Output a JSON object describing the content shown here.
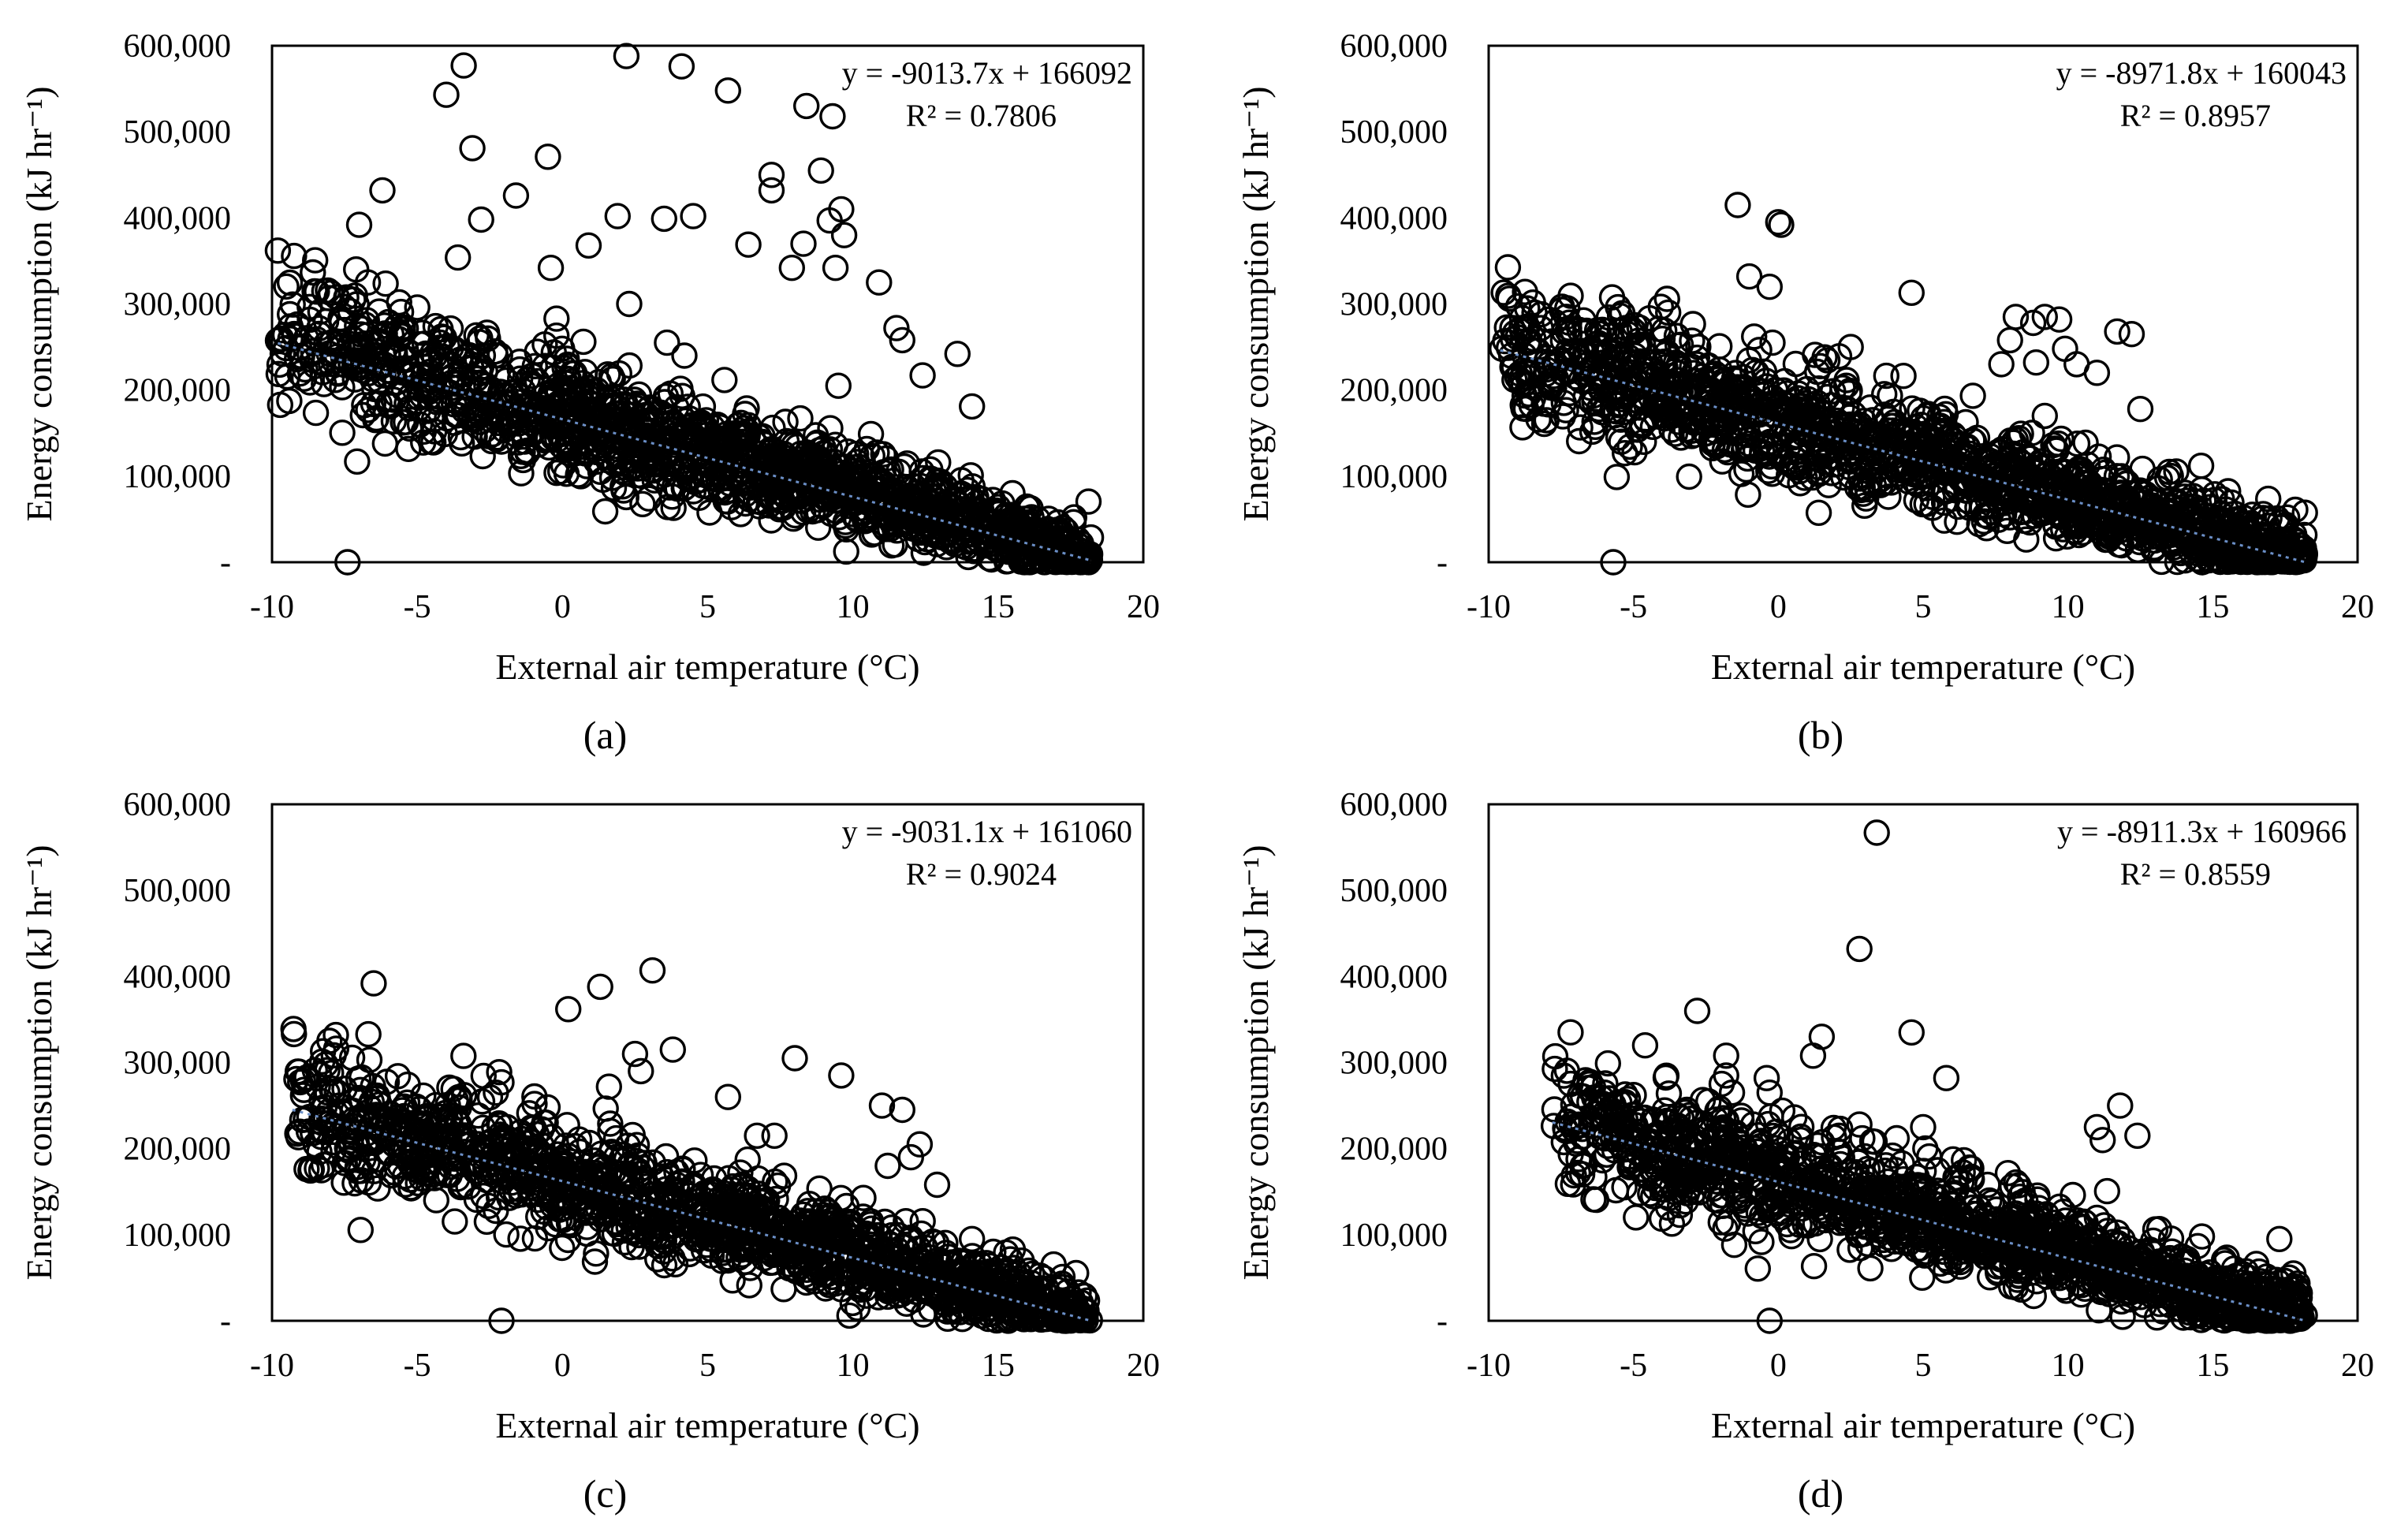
{
  "figure": {
    "panels": [
      {
        "label": "(a)",
        "equation": "y = -9013.7x + 166092",
        "r2": "R² = 0.7806",
        "ylabel": "Energy consumption (kJ hr⁻¹)",
        "xlabel": "External air temperature (°C)",
        "ytick_labels": [
          "-",
          "100,000",
          "200,000",
          "300,000",
          "400,000",
          "500,000",
          "600,000"
        ],
        "xtick_labels": [
          "-10",
          "-5",
          "0",
          "5",
          "10",
          "15",
          "20"
        ]
      },
      {
        "label": "(b)",
        "equation": "y = -8971.8x + 160043",
        "r2": "R² = 0.8957",
        "ylabel": "Energy consumption (kJ hr⁻¹)",
        "xlabel": "External air temperature (°C)",
        "ytick_labels": [
          "-",
          "100,000",
          "200,000",
          "300,000",
          "400,000",
          "500,000",
          "600,000"
        ],
        "xtick_labels": [
          "-10",
          "-5",
          "0",
          "5",
          "10",
          "15",
          "20"
        ]
      },
      {
        "label": "(c)",
        "equation": "y = -9031.1x + 161060",
        "r2": "R² = 0.9024",
        "ylabel": "Energy consumption (kJ hr⁻¹)",
        "xlabel": "External air temperature (°C)",
        "ytick_labels": [
          "-",
          "100,000",
          "200,000",
          "300,000",
          "400,000",
          "500,000",
          "600,000"
        ],
        "xtick_labels": [
          "-10",
          "-5",
          "0",
          "5",
          "10",
          "15",
          "20"
        ]
      },
      {
        "label": "(d)",
        "equation": "y = -8911.3x + 160966",
        "r2": "R² = 0.8559",
        "ylabel": "Energy consumption (kJ hr⁻¹)",
        "xlabel": "External air temperature (°C)",
        "ytick_labels": [
          "-",
          "100,000",
          "200,000",
          "300,000",
          "400,000",
          "500,000",
          "600,000"
        ],
        "xtick_labels": [
          "-10",
          "-5",
          "0",
          "5",
          "10",
          "15",
          "20"
        ]
      }
    ]
  },
  "chart_data": [
    {
      "type": "scatter",
      "title": "(a)",
      "xlabel": "External air temperature (°C)",
      "ylabel": "Energy consumption (kJ hr⁻¹)",
      "xlim": [
        -10,
        20
      ],
      "ylim": [
        0,
        600000
      ],
      "xticks": [
        -10,
        -5,
        0,
        5,
        10,
        15,
        20
      ],
      "yticks": [
        0,
        100000,
        200000,
        300000,
        400000,
        500000,
        600000
      ],
      "trendline": {
        "slope": -9013.7,
        "intercept": 166092,
        "r2": 0.7806
      },
      "x_data_range": [
        -9.8,
        18.2
      ],
      "outliers": [
        [
          -9.8,
          362000
        ],
        [
          -7.4,
          0
        ],
        [
          -7,
          392000
        ],
        [
          -6.2,
          432000
        ],
        [
          -4,
          543000
        ],
        [
          -3.4,
          577000
        ],
        [
          -3.1,
          481000
        ],
        [
          -2.8,
          398000
        ],
        [
          -3.6,
          354000
        ],
        [
          -1.6,
          426000
        ],
        [
          -0.5,
          471000
        ],
        [
          -0.4,
          342000
        ],
        [
          0.9,
          368000
        ],
        [
          1.9,
          402000
        ],
        [
          2.2,
          588000
        ],
        [
          2.3,
          300000
        ],
        [
          3.5,
          399000
        ],
        [
          4.1,
          576000
        ],
        [
          4.5,
          402000
        ],
        [
          5.7,
          548000
        ],
        [
          6.4,
          369000
        ],
        [
          7.2,
          450000
        ],
        [
          7.2,
          432000
        ],
        [
          7.9,
          342000
        ],
        [
          8.3,
          370000
        ],
        [
          8.4,
          530000
        ],
        [
          8.9,
          455000
        ],
        [
          9.2,
          397000
        ],
        [
          9.3,
          518000
        ],
        [
          9.6,
          410000
        ],
        [
          9.7,
          380000
        ],
        [
          9.4,
          342000
        ],
        [
          10.9,
          325000
        ],
        [
          11.5,
          272000
        ],
        [
          12.4,
          217000
        ],
        [
          13.6,
          242000
        ],
        [
          14.1,
          181000
        ],
        [
          -8.2,
          315000
        ],
        [
          -6.7,
          325000
        ],
        [
          -5,
          296000
        ],
        [
          -5.5,
          273000
        ],
        [
          -4.2,
          255000
        ],
        [
          3.6,
          255000
        ],
        [
          4.2,
          240000
        ],
        [
          9.5,
          205000
        ],
        [
          11.7,
          258000
        ]
      ]
    },
    {
      "type": "scatter",
      "title": "(b)",
      "xlabel": "External air temperature (°C)",
      "ylabel": "Energy consumption (kJ hr⁻¹)",
      "xlim": [
        -10,
        20
      ],
      "ylim": [
        0,
        600000
      ],
      "xticks": [
        -10,
        -5,
        0,
        5,
        10,
        15,
        20
      ],
      "yticks": [
        0,
        100000,
        200000,
        300000,
        400000,
        500000,
        600000
      ],
      "trendline": {
        "slope": -8971.8,
        "intercept": 160043,
        "r2": 0.8957
      },
      "x_data_range": [
        -9.6,
        18.2
      ],
      "outliers": [
        [
          -8.2,
          272000
        ],
        [
          -5.7,
          0
        ],
        [
          -3.8,
          290000
        ],
        [
          -1.4,
          415000
        ],
        [
          -1,
          332000
        ],
        [
          -0.3,
          320000
        ],
        [
          0,
          395000
        ],
        [
          0.1,
          392000
        ],
        [
          -0.2,
          255000
        ],
        [
          1.6,
          238000
        ],
        [
          2.5,
          250000
        ],
        [
          4.6,
          313000
        ],
        [
          8.2,
          285000
        ],
        [
          8.8,
          278000
        ],
        [
          9.2,
          285000
        ],
        [
          9.7,
          282000
        ],
        [
          9.9,
          248000
        ],
        [
          10.3,
          230000
        ],
        [
          11.7,
          268000
        ],
        [
          12.2,
          265000
        ],
        [
          12.5,
          178000
        ],
        [
          13.5,
          105000
        ],
        [
          14.6,
          112000
        ],
        [
          7.7,
          230000
        ],
        [
          8,
          258000
        ],
        [
          8.9,
          232000
        ],
        [
          9.2,
          170000
        ],
        [
          11,
          220000
        ]
      ]
    },
    {
      "type": "scatter",
      "title": "(c)",
      "xlabel": "External air temperature (°C)",
      "ylabel": "Energy consumption (kJ hr⁻¹)",
      "xlim": [
        -10,
        20
      ],
      "ylim": [
        0,
        600000
      ],
      "xticks": [
        -10,
        -5,
        0,
        5,
        10,
        15,
        20
      ],
      "yticks": [
        0,
        100000,
        200000,
        300000,
        400000,
        500000,
        600000
      ],
      "trendline": {
        "slope": -9031.1,
        "intercept": 161060,
        "r2": 0.9024
      },
      "x_data_range": [
        -9.3,
        18.2
      ],
      "outliers": [
        [
          -7.8,
          332000
        ],
        [
          -6.5,
          392000
        ],
        [
          -6.4,
          258000
        ],
        [
          -2.1,
          0
        ],
        [
          -2.1,
          277000
        ],
        [
          0.2,
          362000
        ],
        [
          1.3,
          388000
        ],
        [
          3.1,
          407000
        ],
        [
          1.6,
          272000
        ],
        [
          2.5,
          310000
        ],
        [
          2.7,
          290000
        ],
        [
          3.8,
          315000
        ],
        [
          5.7,
          260000
        ],
        [
          6.7,
          215000
        ],
        [
          7.3,
          215000
        ],
        [
          8,
          305000
        ],
        [
          9.6,
          285000
        ],
        [
          11,
          250000
        ],
        [
          11.7,
          245000
        ],
        [
          12.3,
          205000
        ],
        [
          12.9,
          158000
        ],
        [
          14.1,
          95000
        ],
        [
          15.1,
          62000
        ],
        [
          11.2,
          180000
        ],
        [
          12,
          190000
        ]
      ]
    },
    {
      "type": "scatter",
      "title": "(d)",
      "xlabel": "External air temperature (°C)",
      "ylabel": "Energy consumption (kJ hr⁻¹)",
      "xlim": [
        -10,
        20
      ],
      "ylim": [
        0,
        600000
      ],
      "xticks": [
        -10,
        -5,
        0,
        5,
        10,
        15,
        20
      ],
      "yticks": [
        0,
        100000,
        200000,
        300000,
        400000,
        500000,
        600000
      ],
      "trendline": {
        "slope": -8911.3,
        "intercept": 160966,
        "r2": 0.8559
      },
      "x_data_range": [
        -7.8,
        18.2
      ],
      "outliers": [
        [
          -6.1,
          248000
        ],
        [
          -4.6,
          320000
        ],
        [
          -2.8,
          360000
        ],
        [
          -1.8,
          308000
        ],
        [
          -1.8,
          285000
        ],
        [
          -1.6,
          265000
        ],
        [
          -0.4,
          282000
        ],
        [
          -0.3,
          265000
        ],
        [
          -0.3,
          0
        ],
        [
          1.2,
          308000
        ],
        [
          1.5,
          330000
        ],
        [
          2.8,
          432000
        ],
        [
          3.4,
          567000
        ],
        [
          2.8,
          228000
        ],
        [
          2.9,
          212000
        ],
        [
          4.6,
          335000
        ],
        [
          5,
          225000
        ],
        [
          5.5,
          175000
        ],
        [
          5.8,
          282000
        ],
        [
          6.6,
          178000
        ],
        [
          11.8,
          250000
        ],
        [
          12.4,
          215000
        ],
        [
          11,
          225000
        ],
        [
          11.2,
          210000
        ],
        [
          17.3,
          95000
        ],
        [
          15.8,
          52000
        ],
        [
          -2.2,
          215000
        ],
        [
          0.3,
          190000
        ]
      ]
    }
  ]
}
